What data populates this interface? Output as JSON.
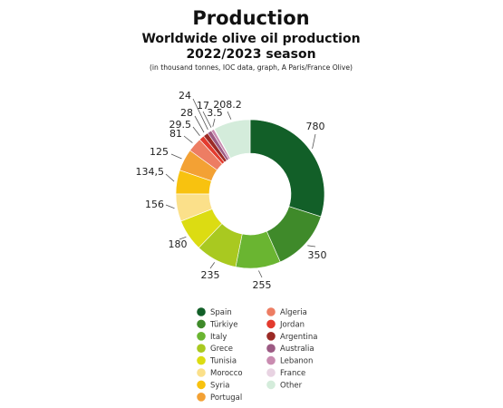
{
  "heading": {
    "title": "Production",
    "subtitle_line1": "Worldwide olive oil production",
    "subtitle_line2": "2022/2023 season",
    "note": "(in thousand tonnes, IOC data, graph, A Paris/France Olive)"
  },
  "chart_data": {
    "type": "pie",
    "style": "donut",
    "slices": [
      {
        "label": "Spain",
        "value": 780,
        "display": "780",
        "color": "#125f28"
      },
      {
        "label": "Türkiye",
        "value": 350,
        "display": "350",
        "color": "#3f8a2a"
      },
      {
        "label": "Italy",
        "value": 255,
        "display": "255",
        "color": "#6ab531"
      },
      {
        "label": "Grece",
        "value": 235,
        "display": "235",
        "color": "#a9c920"
      },
      {
        "label": "Tunisia",
        "value": 180,
        "display": "180",
        "color": "#dcdc12"
      },
      {
        "label": "Morocco",
        "value": 156,
        "display": "156",
        "color": "#fbe08a"
      },
      {
        "label": "Syria",
        "value": 134.5,
        "display": "134,5",
        "color": "#f8c20f"
      },
      {
        "label": "Portugal",
        "value": 125,
        "display": "125",
        "color": "#f3a134"
      },
      {
        "label": "Algeria",
        "value": 81,
        "display": "81",
        "color": "#ed7d63"
      },
      {
        "label": "Jordan",
        "value": 29.5,
        "display": "29.5",
        "color": "#e33b2e"
      },
      {
        "label": "Argentina",
        "value": 28,
        "display": "28",
        "color": "#9b2a26"
      },
      {
        "label": "Australia",
        "value": 24,
        "display": "24",
        "color": "#9c5a83"
      },
      {
        "label": "Lebanon",
        "value": 17,
        "display": "17",
        "color": "#c98bb0"
      },
      {
        "label": "France",
        "value": 3.5,
        "display": "3.5",
        "color": "#e8d3e2"
      },
      {
        "label": "Other",
        "value": 208.2,
        "display": "208.2",
        "color": "#d4ecdb"
      }
    ],
    "legend_placement": "bottom, two columns"
  }
}
